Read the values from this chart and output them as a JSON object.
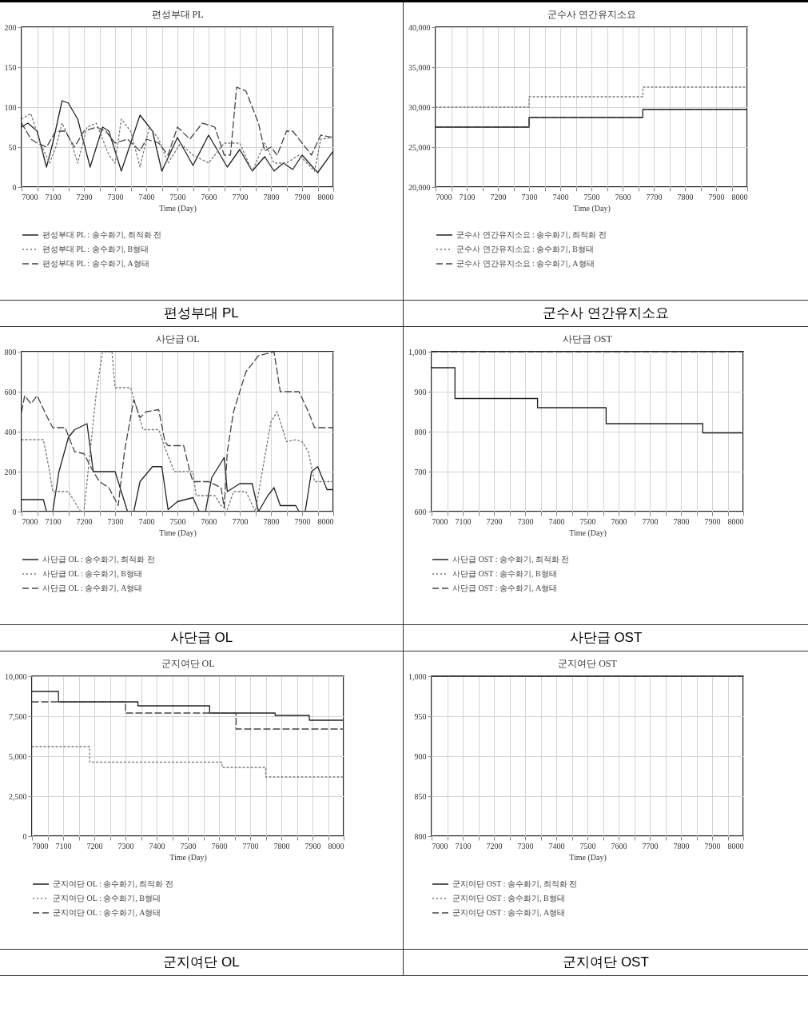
{
  "chart_data": [
    {
      "type": "line",
      "title": "편성부대 PL",
      "xlabel": "Time (Day)",
      "annotations": [
        "편성부대 PL"
      ],
      "xlim": [
        7000,
        8000
      ],
      "ylim": [
        0,
        200
      ],
      "yticks": [
        0,
        50,
        100,
        150,
        200
      ],
      "xticks": [
        7000,
        {
          "value": 7050,
          "label": null
        },
        7100,
        {
          "value": 7150,
          "label": null
        },
        7200,
        {
          "value": 7250,
          "label": null
        },
        7300,
        {
          "value": 7350,
          "label": null
        },
        7400,
        {
          "value": 7450,
          "label": null
        },
        7500,
        {
          "value": 7550,
          "label": null
        },
        7600,
        {
          "value": 7650,
          "label": null
        },
        7700,
        {
          "value": 7750,
          "label": null
        },
        7800,
        {
          "value": 7850,
          "label": null
        },
        7900,
        {
          "value": 7950,
          "label": null
        },
        8000
      ],
      "grid": true,
      "legend": "bottom",
      "series": [
        {
          "name": "편성부대 PL : 송수화기, 최적화 전",
          "color": "#222222",
          "line_style": "solid",
          "x": [
            7000,
            7020,
            7050,
            7080,
            7100,
            7130,
            7150,
            7180,
            7220,
            7260,
            7280,
            7320,
            7380,
            7420,
            7450,
            7500,
            7550,
            7600,
            7660,
            7700,
            7740,
            7780,
            7810,
            7840,
            7870,
            7900,
            7950,
            8000
          ],
          "values": [
            75,
            80,
            70,
            25,
            55,
            108,
            105,
            85,
            25,
            75,
            70,
            20,
            90,
            70,
            20,
            62,
            27,
            65,
            25,
            47,
            20,
            38,
            20,
            30,
            22,
            40,
            18,
            45
          ]
        },
        {
          "name": "편성부대 PL : 송수화기, B형태",
          "color": "#777777",
          "line_style": "dotted",
          "x": [
            7000,
            7030,
            7060,
            7090,
            7110,
            7130,
            7160,
            7180,
            7210,
            7240,
            7280,
            7300,
            7320,
            7350,
            7380,
            7410,
            7440,
            7470,
            7510,
            7550,
            7600,
            7650,
            7700,
            7740,
            7780,
            7810,
            7850,
            7890,
            7940,
            7960,
            8000
          ],
          "values": [
            85,
            92,
            55,
            30,
            50,
            80,
            55,
            30,
            75,
            80,
            40,
            30,
            85,
            70,
            25,
            75,
            60,
            30,
            55,
            40,
            30,
            55,
            55,
            20,
            55,
            30,
            30,
            40,
            20,
            60,
            62
          ]
        },
        {
          "name": "편성부대 PL : 송수화기, A형태",
          "color": "#444444",
          "line_style": "dashed",
          "x": [
            7000,
            7030,
            7050,
            7080,
            7110,
            7140,
            7170,
            7200,
            7240,
            7270,
            7300,
            7340,
            7380,
            7400,
            7440,
            7470,
            7500,
            7540,
            7580,
            7620,
            7650,
            7670,
            7690,
            7720,
            7760,
            7780,
            7800,
            7820,
            7850,
            7870,
            7900,
            7930,
            7960,
            8000
          ],
          "values": [
            80,
            60,
            55,
            50,
            70,
            70,
            50,
            70,
            75,
            70,
            55,
            60,
            45,
            60,
            55,
            40,
            75,
            60,
            80,
            75,
            40,
            40,
            125,
            120,
            80,
            45,
            50,
            40,
            70,
            70,
            55,
            40,
            65,
            62
          ]
        }
      ]
    },
    {
      "type": "step",
      "title": "군수사 연간유지소요",
      "xlabel": "Time (Day)",
      "annotations": [
        "군수사 연간유지소요"
      ],
      "xlim": [
        7000,
        8000
      ],
      "ylim": [
        20000,
        40000
      ],
      "yticks": [
        {
          "value": 20000,
          "label": "20,000"
        },
        {
          "value": 25000,
          "label": "25,000"
        },
        {
          "value": 30000,
          "label": "30,000"
        },
        {
          "value": 35000,
          "label": "35,000"
        },
        {
          "value": 40000,
          "label": "40,000"
        }
      ],
      "xticks": [
        7000,
        {
          "value": 7050,
          "label": null
        },
        7100,
        {
          "value": 7150,
          "label": null
        },
        7200,
        {
          "value": 7250,
          "label": null
        },
        7300,
        {
          "value": 7350,
          "label": null
        },
        7400,
        {
          "value": 7450,
          "label": null
        },
        7500,
        {
          "value": 7550,
          "label": null
        },
        7600,
        {
          "value": 7650,
          "label": null
        },
        7700,
        {
          "value": 7750,
          "label": null
        },
        7800,
        {
          "value": 7850,
          "label": null
        },
        7900,
        {
          "value": 7950,
          "label": null
        },
        8000
      ],
      "grid": true,
      "legend": "bottom",
      "series": [
        {
          "name": "군수사 연간유지소요 : 송수화기, 최적화 전",
          "color": "#222222",
          "line_style": "solid",
          "x": [
            7000,
            7300,
            7665,
            8000
          ],
          "values": [
            27500,
            28700,
            29700,
            29700
          ]
        },
        {
          "name": "군수사 연간유지소요 : 송수화기, B형태",
          "color": "#777777",
          "line_style": "dotted",
          "x": [
            7000,
            7300,
            7665,
            8000
          ],
          "values": [
            30000,
            31300,
            32500,
            32500
          ]
        },
        {
          "name": "군수사 연간유지소요 : 송수화기, A형태",
          "color": "#444444",
          "line_style": "dashed",
          "x": [
            7000,
            7300,
            7665,
            8000
          ],
          "values": [
            27500,
            28700,
            29700,
            29700
          ]
        }
      ]
    },
    {
      "type": "line",
      "title": "사단급 OL",
      "xlabel": "Time (Day)",
      "annotations": [
        "사단급 OL"
      ],
      "xlim": [
        7000,
        8000
      ],
      "ylim": [
        0,
        800
      ],
      "yticks": [
        0,
        200,
        400,
        600,
        800
      ],
      "xticks": [
        7000,
        {
          "value": 7050,
          "label": null
        },
        7100,
        {
          "value": 7150,
          "label": null
        },
        7200,
        {
          "value": 7250,
          "label": null
        },
        7300,
        {
          "value": 7350,
          "label": null
        },
        7400,
        {
          "value": 7450,
          "label": null
        },
        7500,
        {
          "value": 7550,
          "label": null
        },
        7600,
        {
          "value": 7650,
          "label": null
        },
        7700,
        {
          "value": 7750,
          "label": null
        },
        7800,
        {
          "value": 7850,
          "label": null
        },
        7900,
        {
          "value": 7950,
          "label": null
        },
        8000
      ],
      "grid": true,
      "legend": "bottom",
      "series": [
        {
          "name": "사단급 OL : 송수화기, 최적화 전",
          "color": "#222222",
          "line_style": "solid",
          "x": [
            7000,
            7070,
            7080,
            7100,
            7120,
            7150,
            7170,
            7210,
            7230,
            7300,
            7320,
            7340,
            7360,
            7380,
            7420,
            7450,
            7470,
            7500,
            7550,
            7570,
            7590,
            7610,
            7650,
            7660,
            7700,
            7740,
            7760,
            7790,
            7810,
            7830,
            7880,
            7890,
            7910,
            7930,
            7950,
            7980,
            8000
          ],
          "values": [
            60,
            60,
            0,
            0,
            200,
            370,
            410,
            440,
            200,
            200,
            100,
            0,
            0,
            150,
            225,
            225,
            10,
            50,
            70,
            0,
            0,
            170,
            270,
            100,
            140,
            140,
            0,
            80,
            120,
            30,
            30,
            0,
            0,
            200,
            225,
            110,
            110
          ]
        },
        {
          "name": "사단급 OL : 송수화기, B형태",
          "color": "#777777",
          "line_style": "dotted",
          "x": [
            7000,
            7070,
            7090,
            7100,
            7150,
            7190,
            7200,
            7240,
            7260,
            7290,
            7300,
            7350,
            7380,
            7390,
            7440,
            7460,
            7490,
            7550,
            7560,
            7620,
            7640,
            7660,
            7680,
            7720,
            7750,
            7800,
            7820,
            7850,
            7880,
            7900,
            7920,
            7940,
            8000
          ],
          "values": [
            360,
            360,
            200,
            100,
            100,
            0,
            0,
            600,
            800,
            800,
            620,
            620,
            460,
            410,
            410,
            320,
            200,
            200,
            80,
            80,
            30,
            10,
            100,
            100,
            0,
            450,
            500,
            350,
            360,
            350,
            300,
            150,
            150
          ]
        },
        {
          "name": "사단급 OL : 송수화기, A형태",
          "color": "#444444",
          "line_style": "dashed",
          "x": [
            7000,
            7010,
            7030,
            7050,
            7080,
            7100,
            7140,
            7170,
            7200,
            7230,
            7250,
            7280,
            7310,
            7330,
            7360,
            7380,
            7400,
            7440,
            7460,
            7470,
            7520,
            7540,
            7550,
            7600,
            7640,
            7650,
            7660,
            7680,
            7720,
            7760,
            7810,
            7830,
            7890,
            7920,
            7940,
            8000
          ],
          "values": [
            500,
            580,
            540,
            580,
            480,
            420,
            420,
            300,
            290,
            200,
            150,
            120,
            30,
            300,
            560,
            470,
            500,
            510,
            350,
            330,
            330,
            200,
            150,
            150,
            120,
            20,
            300,
            500,
            700,
            780,
            800,
            600,
            600,
            500,
            420,
            420
          ]
        }
      ]
    },
    {
      "type": "step",
      "title": "사단급 OST",
      "xlabel": "Time (Day)",
      "annotations": [
        "사단급 OST"
      ],
      "xlim": [
        7000,
        8000
      ],
      "ylim": [
        600,
        1000
      ],
      "yticks": [
        600,
        700,
        800,
        900,
        {
          "value": 1000,
          "label": "1,000"
        }
      ],
      "xticks": [
        7000,
        {
          "value": 7050,
          "label": null
        },
        7100,
        {
          "value": 7150,
          "label": null
        },
        7200,
        {
          "value": 7250,
          "label": null
        },
        7300,
        {
          "value": 7350,
          "label": null
        },
        7400,
        {
          "value": 7450,
          "label": null
        },
        7500,
        {
          "value": 7550,
          "label": null
        },
        7600,
        {
          "value": 7650,
          "label": null
        },
        7700,
        {
          "value": 7750,
          "label": null
        },
        7800,
        {
          "value": 7850,
          "label": null
        },
        7900,
        {
          "value": 7950,
          "label": null
        },
        8000
      ],
      "grid": true,
      "legend": "bottom",
      "series": [
        {
          "name": "사단급 OST : 송수화기, 최적화 전",
          "color": "#222222",
          "line_style": "solid",
          "x": [
            7000,
            7075,
            7340,
            7560,
            7870,
            8000
          ],
          "values": [
            960,
            883,
            860,
            820,
            797,
            797
          ]
        },
        {
          "name": "사단급 OST : 송수화기, B형태",
          "color": "#777777",
          "line_style": "dotted",
          "x": [
            7000,
            8000
          ],
          "values": [
            1000,
            1000
          ]
        },
        {
          "name": "사단급 OST : 송수화기, A형태",
          "color": "#444444",
          "line_style": "dashed",
          "x": [
            7000,
            8000
          ],
          "values": [
            1000,
            1000
          ]
        }
      ]
    },
    {
      "type": "step",
      "title": "군지여단 OL",
      "xlabel": "Time (Day)",
      "annotations": [
        "군지여단 OL"
      ],
      "xlim": [
        7000,
        8000
      ],
      "ylim": [
        0,
        10000
      ],
      "yticks": [
        0,
        {
          "value": 2500,
          "label": "2,500"
        },
        {
          "value": 5000,
          "label": "5,000"
        },
        {
          "value": 7500,
          "label": "7,500"
        },
        {
          "value": 10000,
          "label": "10,000"
        }
      ],
      "xticks": [
        7000,
        {
          "value": 7050,
          "label": null
        },
        7100,
        {
          "value": 7150,
          "label": null
        },
        7200,
        {
          "value": 7250,
          "label": null
        },
        7300,
        {
          "value": 7350,
          "label": null
        },
        7400,
        {
          "value": 7450,
          "label": null
        },
        7500,
        {
          "value": 7550,
          "label": null
        },
        7600,
        {
          "value": 7650,
          "label": null
        },
        7700,
        {
          "value": 7750,
          "label": null
        },
        7800,
        {
          "value": 7850,
          "label": null
        },
        7900,
        {
          "value": 7950,
          "label": null
        },
        8000
      ],
      "grid": true,
      "legend": "bottom",
      "series": [
        {
          "name": "군지여단 OL : 송수화기, 최적화 전",
          "color": "#222222",
          "line_style": "solid",
          "x": [
            7000,
            7085,
            7340,
            7570,
            7780,
            7890,
            8000
          ],
          "values": [
            9050,
            8400,
            8150,
            7700,
            7550,
            7250,
            7250
          ]
        },
        {
          "name": "군지여단 OL : 송수화기, B형태",
          "color": "#777777",
          "line_style": "dotted",
          "x": [
            7000,
            7185,
            7610,
            7750,
            8000
          ],
          "values": [
            5600,
            4630,
            4300,
            3700,
            3700
          ]
        },
        {
          "name": "군지여단 OL : 송수화기, A형태",
          "color": "#444444",
          "line_style": "dashed",
          "x": [
            7000,
            7300,
            7655,
            8000
          ],
          "values": [
            8400,
            7700,
            6700,
            6700
          ]
        }
      ]
    },
    {
      "type": "step",
      "title": "군지여단 OST",
      "xlabel": "Time (Day)",
      "annotations": [
        "군지여단 OST"
      ],
      "xlim": [
        7000,
        8000
      ],
      "ylim": [
        800,
        1000
      ],
      "yticks": [
        800,
        850,
        900,
        950,
        {
          "value": 1000,
          "label": "1,000"
        }
      ],
      "xticks": [
        7000,
        {
          "value": 7050,
          "label": null
        },
        7100,
        {
          "value": 7150,
          "label": null
        },
        7200,
        {
          "value": 7250,
          "label": null
        },
        7300,
        {
          "value": 7350,
          "label": null
        },
        7400,
        {
          "value": 7450,
          "label": null
        },
        7500,
        {
          "value": 7550,
          "label": null
        },
        7600,
        {
          "value": 7650,
          "label": null
        },
        7700,
        {
          "value": 7750,
          "label": null
        },
        7800,
        {
          "value": 7850,
          "label": null
        },
        7900,
        {
          "value": 7950,
          "label": null
        },
        8000
      ],
      "grid": true,
      "legend": "bottom",
      "series": [
        {
          "name": "군지여단 OST : 송수화기, 최적화 전",
          "color": "#222222",
          "line_style": "solid",
          "x": [
            7000,
            8000
          ],
          "values": [
            1000,
            1000
          ]
        },
        {
          "name": "군지여단 OST : 송수화기, B형태",
          "color": "#777777",
          "line_style": "dotted",
          "x": [
            7000,
            8000
          ],
          "values": [
            1000,
            1000
          ]
        },
        {
          "name": "군지여단 OST : 송수화기, A형태",
          "color": "#444444",
          "line_style": "dashed",
          "x": [
            7000,
            8000
          ],
          "values": [
            1000,
            1000
          ]
        }
      ]
    }
  ]
}
